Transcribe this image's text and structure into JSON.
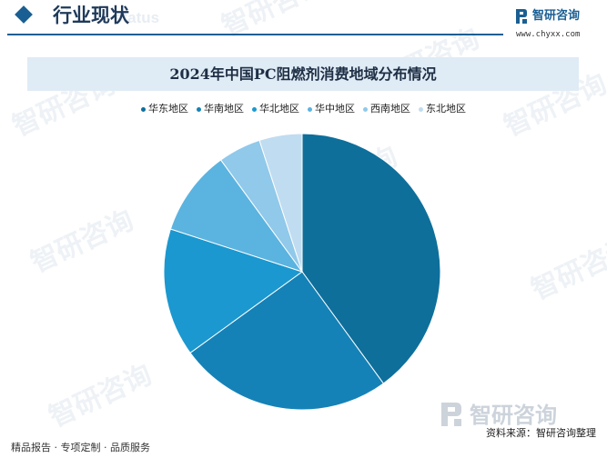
{
  "header": {
    "section_title": "行业现状",
    "ghost_text": "status"
  },
  "brand": {
    "name": "智研咨询",
    "url": "www.chyxx.com",
    "primary_color": "#1a5f93"
  },
  "watermark": {
    "text": "智研咨询"
  },
  "chart_data": {
    "type": "pie",
    "title": "2024年中国PC阻燃剂消费地域分布情况",
    "legend_position": "top",
    "categories": [
      "华东地区",
      "华南地区",
      "华北地区",
      "华中地区",
      "西南地区",
      "东北地区"
    ],
    "values": [
      40,
      25,
      15,
      10,
      5,
      5
    ],
    "colors": [
      "#0e6f9b",
      "#1582b7",
      "#1b98cf",
      "#5bb3e0",
      "#90c9ea",
      "#c0dcf0"
    ]
  },
  "footer": {
    "left_text": "精品报告 · 专项定制 · 品质服务",
    "source_text": "资料来源：智研咨询整理"
  }
}
